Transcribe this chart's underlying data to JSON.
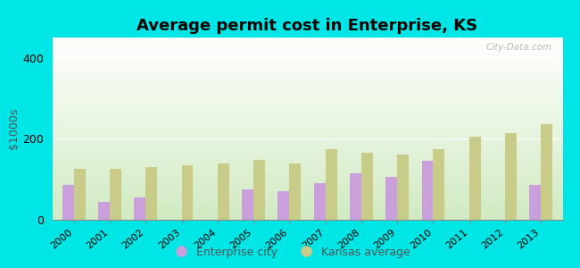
{
  "title": "Average permit cost in Enterprise, KS",
  "ylabel": "$1000s",
  "years": [
    2000,
    2001,
    2002,
    2003,
    2004,
    2005,
    2006,
    2007,
    2008,
    2009,
    2010,
    2011,
    2012,
    2013
  ],
  "enterprise_values": [
    85,
    45,
    55,
    0,
    0,
    75,
    70,
    90,
    115,
    105,
    145,
    0,
    0,
    85
  ],
  "kansas_values": [
    125,
    125,
    130,
    135,
    140,
    148,
    140,
    175,
    165,
    160,
    175,
    205,
    215,
    235
  ],
  "enterprise_color": "#c9a0dc",
  "kansas_color": "#c8cc88",
  "background_outer": "#00e5e5",
  "ylim": [
    0,
    450
  ],
  "yticks": [
    0,
    200,
    400
  ],
  "legend_enterprise": "Enterprise city",
  "legend_kansas": "Kansas average",
  "title_fontsize": 13,
  "watermark": "City-Data.com"
}
